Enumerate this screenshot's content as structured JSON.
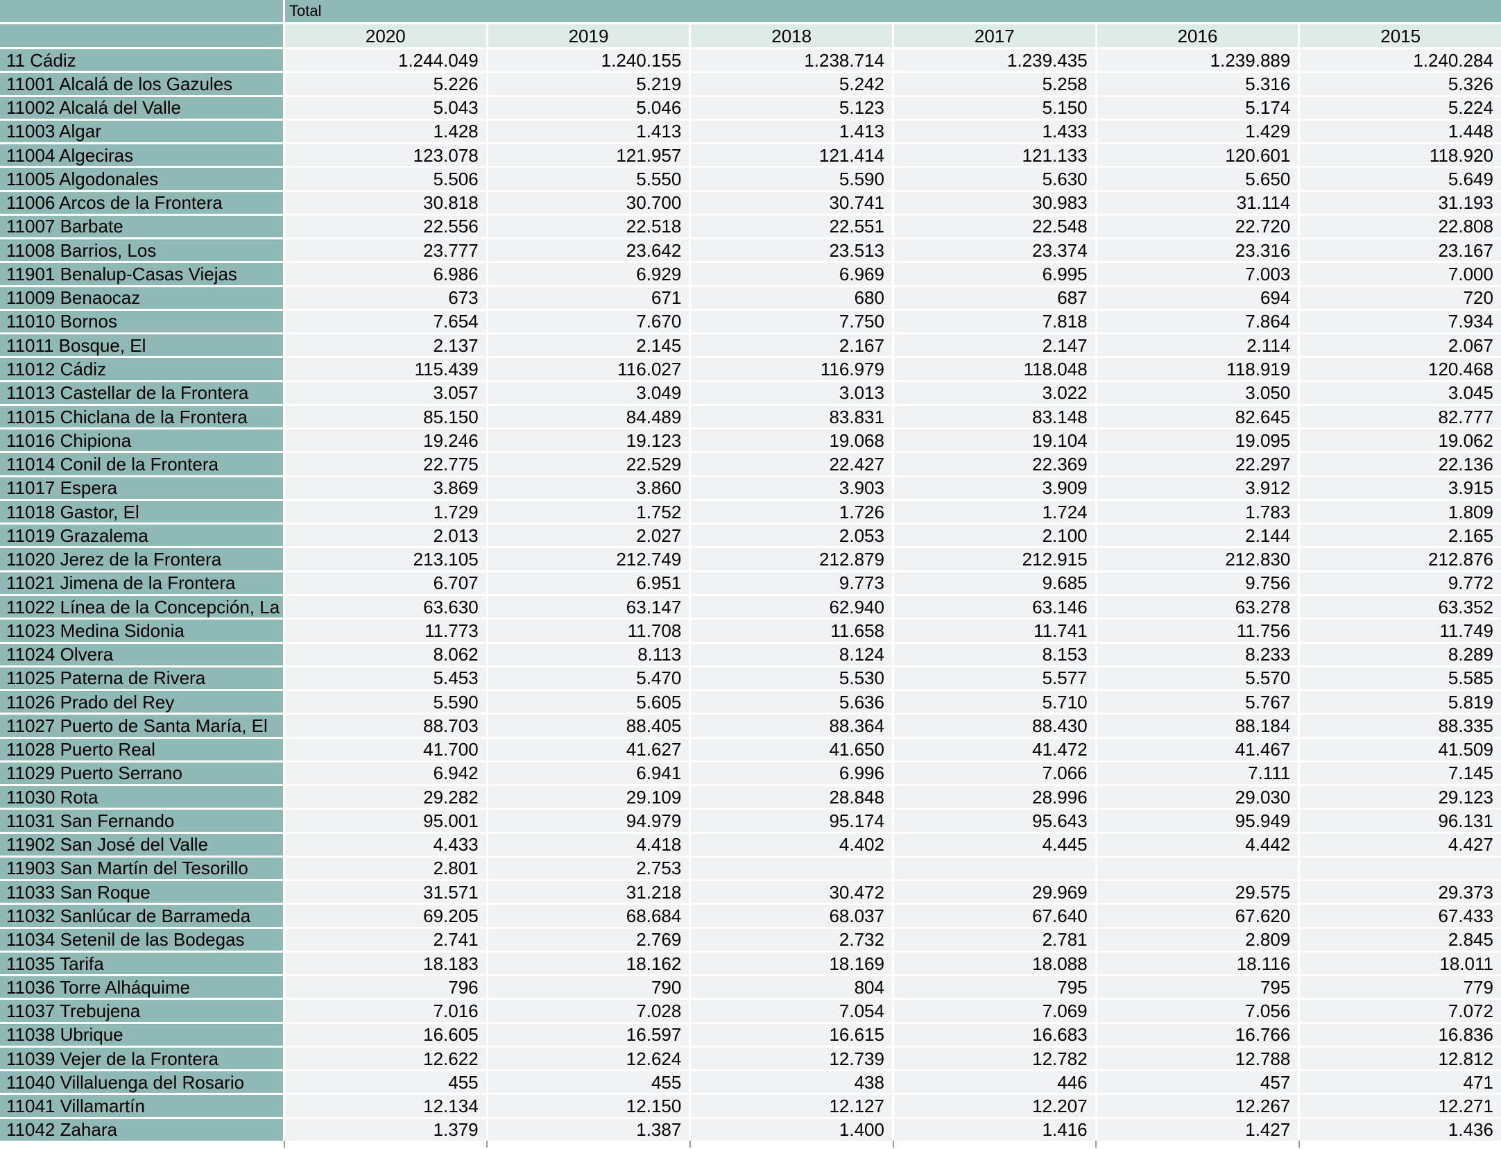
{
  "colors": {
    "header_bg": "#90B8B4",
    "year_header_bg": "#DFEBE7",
    "cell_bg": "#F1F2F4",
    "grid_line": "#FFFFFF",
    "tick": "#9B9B9B",
    "text": "#000000"
  },
  "chart_data": {
    "type": "table",
    "title": "Total",
    "columns": [
      "2020",
      "2019",
      "2018",
      "2017",
      "2016",
      "2015"
    ],
    "rows": [
      {
        "name": "11 Cádiz",
        "values": [
          "1.244.049",
          "1.240.155",
          "1.238.714",
          "1.239.435",
          "1.239.889",
          "1.240.284"
        ]
      },
      {
        "name": "11001 Alcalá de los Gazules",
        "values": [
          "5.226",
          "5.219",
          "5.242",
          "5.258",
          "5.316",
          "5.326"
        ]
      },
      {
        "name": "11002 Alcalá del Valle",
        "values": [
          "5.043",
          "5.046",
          "5.123",
          "5.150",
          "5.174",
          "5.224"
        ]
      },
      {
        "name": "11003 Algar",
        "values": [
          "1.428",
          "1.413",
          "1.413",
          "1.433",
          "1.429",
          "1.448"
        ]
      },
      {
        "name": "11004 Algeciras",
        "values": [
          "123.078",
          "121.957",
          "121.414",
          "121.133",
          "120.601",
          "118.920"
        ]
      },
      {
        "name": "11005 Algodonales",
        "values": [
          "5.506",
          "5.550",
          "5.590",
          "5.630",
          "5.650",
          "5.649"
        ]
      },
      {
        "name": "11006 Arcos de la Frontera",
        "values": [
          "30.818",
          "30.700",
          "30.741",
          "30.983",
          "31.114",
          "31.193"
        ]
      },
      {
        "name": "11007 Barbate",
        "values": [
          "22.556",
          "22.518",
          "22.551",
          "22.548",
          "22.720",
          "22.808"
        ]
      },
      {
        "name": "11008 Barrios, Los",
        "values": [
          "23.777",
          "23.642",
          "23.513",
          "23.374",
          "23.316",
          "23.167"
        ]
      },
      {
        "name": "11901 Benalup-Casas Viejas",
        "values": [
          "6.986",
          "6.929",
          "6.969",
          "6.995",
          "7.003",
          "7.000"
        ]
      },
      {
        "name": "11009 Benaocaz",
        "values": [
          "673",
          "671",
          "680",
          "687",
          "694",
          "720"
        ]
      },
      {
        "name": "11010 Bornos",
        "values": [
          "7.654",
          "7.670",
          "7.750",
          "7.818",
          "7.864",
          "7.934"
        ]
      },
      {
        "name": "11011 Bosque, El",
        "values": [
          "2.137",
          "2.145",
          "2.167",
          "2.147",
          "2.114",
          "2.067"
        ]
      },
      {
        "name": "11012 Cádiz",
        "values": [
          "115.439",
          "116.027",
          "116.979",
          "118.048",
          "118.919",
          "120.468"
        ]
      },
      {
        "name": "11013 Castellar de la Frontera",
        "values": [
          "3.057",
          "3.049",
          "3.013",
          "3.022",
          "3.050",
          "3.045"
        ]
      },
      {
        "name": "11015 Chiclana de la Frontera",
        "values": [
          "85.150",
          "84.489",
          "83.831",
          "83.148",
          "82.645",
          "82.777"
        ]
      },
      {
        "name": "11016 Chipiona",
        "values": [
          "19.246",
          "19.123",
          "19.068",
          "19.104",
          "19.095",
          "19.062"
        ]
      },
      {
        "name": "11014 Conil de la Frontera",
        "values": [
          "22.775",
          "22.529",
          "22.427",
          "22.369",
          "22.297",
          "22.136"
        ]
      },
      {
        "name": "11017 Espera",
        "values": [
          "3.869",
          "3.860",
          "3.903",
          "3.909",
          "3.912",
          "3.915"
        ]
      },
      {
        "name": "11018 Gastor, El",
        "values": [
          "1.729",
          "1.752",
          "1.726",
          "1.724",
          "1.783",
          "1.809"
        ]
      },
      {
        "name": "11019 Grazalema",
        "values": [
          "2.013",
          "2.027",
          "2.053",
          "2.100",
          "2.144",
          "2.165"
        ]
      },
      {
        "name": "11020 Jerez de la Frontera",
        "values": [
          "213.105",
          "212.749",
          "212.879",
          "212.915",
          "212.830",
          "212.876"
        ]
      },
      {
        "name": "11021 Jimena de la Frontera",
        "values": [
          "6.707",
          "6.951",
          "9.773",
          "9.685",
          "9.756",
          "9.772"
        ]
      },
      {
        "name": "11022 Línea de la Concepción, La",
        "values": [
          "63.630",
          "63.147",
          "62.940",
          "63.146",
          "63.278",
          "63.352"
        ]
      },
      {
        "name": "11023 Medina Sidonia",
        "values": [
          "11.773",
          "11.708",
          "11.658",
          "11.741",
          "11.756",
          "11.749"
        ]
      },
      {
        "name": "11024 Olvera",
        "values": [
          "8.062",
          "8.113",
          "8.124",
          "8.153",
          "8.233",
          "8.289"
        ]
      },
      {
        "name": "11025 Paterna de Rivera",
        "values": [
          "5.453",
          "5.470",
          "5.530",
          "5.577",
          "5.570",
          "5.585"
        ]
      },
      {
        "name": "11026 Prado del Rey",
        "values": [
          "5.590",
          "5.605",
          "5.636",
          "5.710",
          "5.767",
          "5.819"
        ]
      },
      {
        "name": "11027 Puerto de Santa María, El",
        "values": [
          "88.703",
          "88.405",
          "88.364",
          "88.430",
          "88.184",
          "88.335"
        ]
      },
      {
        "name": "11028 Puerto Real",
        "values": [
          "41.700",
          "41.627",
          "41.650",
          "41.472",
          "41.467",
          "41.509"
        ]
      },
      {
        "name": "11029 Puerto Serrano",
        "values": [
          "6.942",
          "6.941",
          "6.996",
          "7.066",
          "7.111",
          "7.145"
        ]
      },
      {
        "name": "11030 Rota",
        "values": [
          "29.282",
          "29.109",
          "28.848",
          "28.996",
          "29.030",
          "29.123"
        ]
      },
      {
        "name": "11031 San Fernando",
        "values": [
          "95.001",
          "94.979",
          "95.174",
          "95.643",
          "95.949",
          "96.131"
        ]
      },
      {
        "name": "11902 San José del Valle",
        "values": [
          "4.433",
          "4.418",
          "4.402",
          "4.445",
          "4.442",
          "4.427"
        ]
      },
      {
        "name": "11903 San Martín del Tesorillo",
        "values": [
          "2.801",
          "2.753",
          "",
          "",
          "",
          ""
        ]
      },
      {
        "name": "11033 San Roque",
        "values": [
          "31.571",
          "31.218",
          "30.472",
          "29.969",
          "29.575",
          "29.373"
        ]
      },
      {
        "name": "11032 Sanlúcar de Barrameda",
        "values": [
          "69.205",
          "68.684",
          "68.037",
          "67.640",
          "67.620",
          "67.433"
        ]
      },
      {
        "name": "11034 Setenil de las Bodegas",
        "values": [
          "2.741",
          "2.769",
          "2.732",
          "2.781",
          "2.809",
          "2.845"
        ]
      },
      {
        "name": "11035 Tarifa",
        "values": [
          "18.183",
          "18.162",
          "18.169",
          "18.088",
          "18.116",
          "18.011"
        ]
      },
      {
        "name": "11036 Torre Alháquime",
        "values": [
          "796",
          "790",
          "804",
          "795",
          "795",
          "779"
        ]
      },
      {
        "name": "11037 Trebujena",
        "values": [
          "7.016",
          "7.028",
          "7.054",
          "7.069",
          "7.056",
          "7.072"
        ]
      },
      {
        "name": "11038 Ubrique",
        "values": [
          "16.605",
          "16.597",
          "16.615",
          "16.683",
          "16.766",
          "16.836"
        ]
      },
      {
        "name": "11039 Vejer de la Frontera",
        "values": [
          "12.622",
          "12.624",
          "12.739",
          "12.782",
          "12.788",
          "12.812"
        ]
      },
      {
        "name": "11040 Villaluenga del Rosario",
        "values": [
          "455",
          "455",
          "438",
          "446",
          "457",
          "471"
        ]
      },
      {
        "name": "11041 Villamartín",
        "values": [
          "12.134",
          "12.150",
          "12.127",
          "12.207",
          "12.267",
          "12.271"
        ]
      },
      {
        "name": "11042 Zahara",
        "values": [
          "1.379",
          "1.387",
          "1.400",
          "1.416",
          "1.427",
          "1.436"
        ]
      }
    ]
  }
}
